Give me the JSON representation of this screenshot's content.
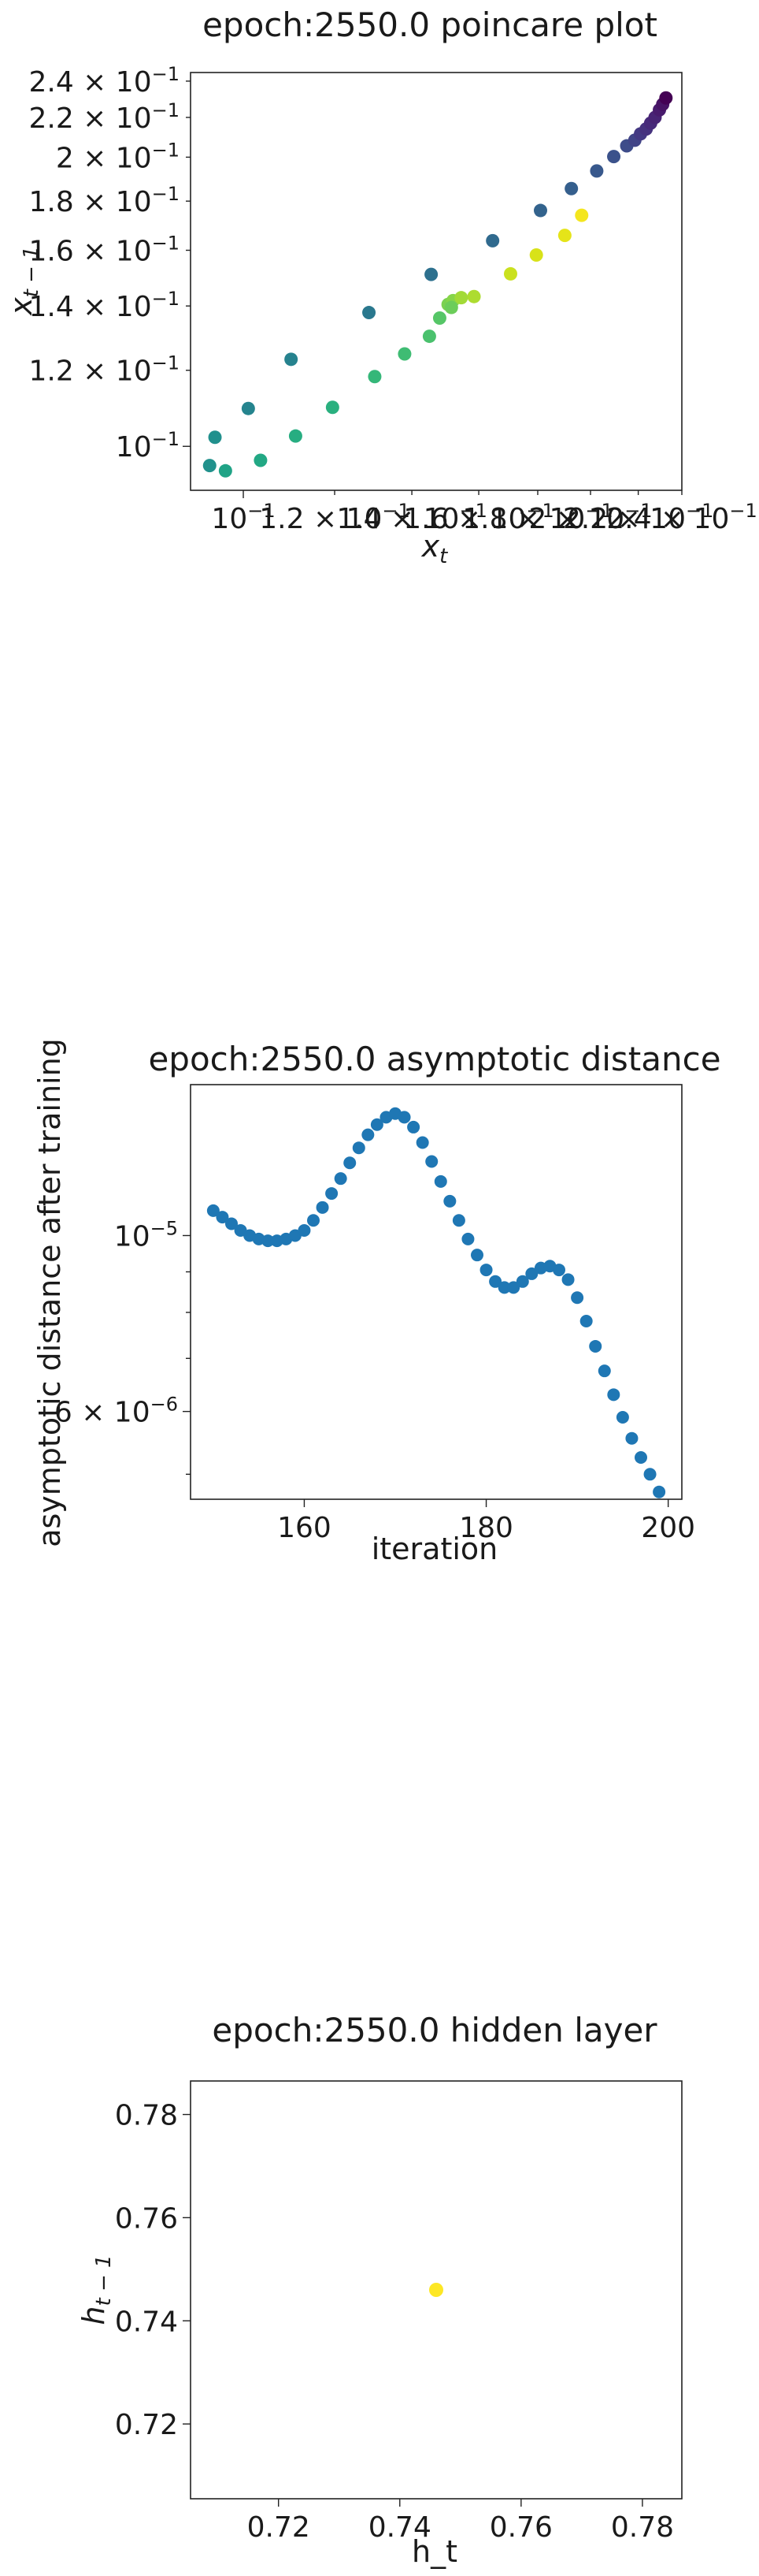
{
  "chart_data": [
    {
      "type": "scatter",
      "title": "epoch:2550.0 poincare plot",
      "xlabel_base": "x",
      "xlabel_sub": "t",
      "ylabel_base": "x",
      "ylabel_sub": "t − 1",
      "xscale": "log",
      "yscale": "log",
      "xlim": [
        0.09,
        0.24
      ],
      "ylim": [
        0.09,
        0.245
      ],
      "grid": false,
      "colormap": "viridis",
      "x_ticks": [
        {
          "value": 0.1,
          "mant": "10",
          "exp": "−1",
          "is_base": true
        },
        {
          "value": 0.12,
          "mant": "1.2 × 10",
          "exp": "−1"
        },
        {
          "value": 0.14,
          "mant": "1.4 × 10",
          "exp": "−1"
        },
        {
          "value": 0.16,
          "mant": "1.6 × 10",
          "exp": "−1"
        },
        {
          "value": 0.18,
          "mant": "1.8 × 10",
          "exp": "−1"
        },
        {
          "value": 0.2,
          "mant": "2 × 10",
          "exp": "−1"
        },
        {
          "value": 0.22,
          "mant": "2.2 × 10",
          "exp": "−1"
        },
        {
          "value": 0.24,
          "mant": "2.4 × 10",
          "exp": "−1"
        }
      ],
      "y_ticks": [
        {
          "value": 0.1,
          "mant": "10",
          "exp": "−1",
          "is_base": true
        },
        {
          "value": 0.12,
          "mant": "1.2 × 10",
          "exp": "−1"
        },
        {
          "value": 0.14,
          "mant": "1.4 × 10",
          "exp": "−1"
        },
        {
          "value": 0.16,
          "mant": "1.6 × 10",
          "exp": "−1"
        },
        {
          "value": 0.18,
          "mant": "1.8 × 10",
          "exp": "−1"
        },
        {
          "value": 0.2,
          "mant": "2 × 10",
          "exp": "−1"
        },
        {
          "value": 0.22,
          "mant": "2.2 × 10",
          "exp": "−1"
        },
        {
          "value": 0.24,
          "mant": "2.4 × 10",
          "exp": "−1"
        }
      ],
      "points": [
        {
          "x": 0.0935,
          "y": 0.0955,
          "c": "#21918c"
        },
        {
          "x": 0.0945,
          "y": 0.1022,
          "c": "#21908d"
        },
        {
          "x": 0.0965,
          "y": 0.0943,
          "c": "#20a386"
        },
        {
          "x": 0.101,
          "y": 0.1095,
          "c": "#25848e"
        },
        {
          "x": 0.1035,
          "y": 0.0967,
          "c": "#22a884"
        },
        {
          "x": 0.111,
          "y": 0.1025,
          "c": "#27ad81"
        },
        {
          "x": 0.11,
          "y": 0.1232,
          "c": "#26828e"
        },
        {
          "x": 0.1195,
          "y": 0.1098,
          "c": "#2ab07f"
        },
        {
          "x": 0.1285,
          "y": 0.1378,
          "c": "#2a788e"
        },
        {
          "x": 0.13,
          "y": 0.1182,
          "c": "#35b779"
        },
        {
          "x": 0.138,
          "y": 0.1248,
          "c": "#3fbc73"
        },
        {
          "x": 0.145,
          "y": 0.1302,
          "c": "#4ac16d"
        },
        {
          "x": 0.1455,
          "y": 0.151,
          "c": "#2d708e"
        },
        {
          "x": 0.148,
          "y": 0.136,
          "c": "#56c667"
        },
        {
          "x": 0.1505,
          "y": 0.1405,
          "c": "#7ad151"
        },
        {
          "x": 0.152,
          "y": 0.1418,
          "c": "#86d549"
        },
        {
          "x": 0.1515,
          "y": 0.1395,
          "c": "#6ccd5a"
        },
        {
          "x": 0.1545,
          "y": 0.1428,
          "c": "#a2da37"
        },
        {
          "x": 0.1585,
          "y": 0.1432,
          "c": "#addc30"
        },
        {
          "x": 0.1645,
          "y": 0.1637,
          "c": "#306a8e"
        },
        {
          "x": 0.1705,
          "y": 0.1512,
          "c": "#cae11f"
        },
        {
          "x": 0.1795,
          "y": 0.1582,
          "c": "#d8e219"
        },
        {
          "x": 0.181,
          "y": 0.176,
          "c": "#33638d"
        },
        {
          "x": 0.19,
          "y": 0.1658,
          "c": "#e5e419"
        },
        {
          "x": 0.1925,
          "y": 0.1855,
          "c": "#355f8d"
        },
        {
          "x": 0.1965,
          "y": 0.174,
          "c": "#f4e61e"
        },
        {
          "x": 0.2025,
          "y": 0.1935,
          "c": "#38588c"
        },
        {
          "x": 0.2095,
          "y": 0.2003,
          "c": "#3b528b"
        },
        {
          "x": 0.215,
          "y": 0.2055,
          "c": "#3e4c8a"
        },
        {
          "x": 0.2185,
          "y": 0.2083,
          "c": "#414487"
        },
        {
          "x": 0.221,
          "y": 0.2115,
          "c": "#443983"
        },
        {
          "x": 0.2235,
          "y": 0.214,
          "c": "#46327e"
        },
        {
          "x": 0.2255,
          "y": 0.217,
          "c": "#472a7a"
        },
        {
          "x": 0.2275,
          "y": 0.22,
          "c": "#482475"
        },
        {
          "x": 0.2295,
          "y": 0.224,
          "c": "#481b6d"
        },
        {
          "x": 0.231,
          "y": 0.227,
          "c": "#471365"
        },
        {
          "x": 0.2325,
          "y": 0.2305,
          "c": "#440154"
        }
      ]
    },
    {
      "type": "scatter",
      "title": "epoch:2550.0 asymptotic distance",
      "xlabel": "iteration",
      "ylabel": "asymptotic distance after training",
      "yscale": "log",
      "xlim": [
        147.5,
        201.5
      ],
      "ylim": [
        4.65e-06,
        1.55e-05
      ],
      "grid": false,
      "color": "#1f77b4",
      "x_ticks": [
        {
          "value": 160,
          "label": "160"
        },
        {
          "value": 180,
          "label": "180"
        },
        {
          "value": 200,
          "label": "200"
        }
      ],
      "y_ticks": [
        {
          "value": 1e-05,
          "mant": "10",
          "exp": "−5",
          "is_base": true
        },
        {
          "value": 6e-06,
          "mant": "6 × 10",
          "exp": "−6"
        }
      ],
      "y_minor_ticks": [
        5e-06,
        7e-06,
        8e-06,
        9e-06
      ],
      "x": [
        150,
        151,
        152,
        153,
        154,
        155,
        156,
        157,
        158,
        159,
        160,
        161,
        162,
        163,
        164,
        165,
        166,
        167,
        168,
        169,
        170,
        171,
        172,
        173,
        174,
        175,
        176,
        177,
        178,
        179,
        180,
        181,
        182,
        183,
        184,
        185,
        186,
        187,
        188,
        189,
        190,
        191,
        192,
        193,
        194,
        195,
        196,
        197,
        198,
        199
      ],
      "y": [
        1.075e-05,
        1.055e-05,
        1.035e-05,
        1.015e-05,
        1e-05,
        9.9e-06,
        9.85e-06,
        9.85e-06,
        9.9e-06,
        1e-05,
        1.015e-05,
        1.045e-05,
        1.085e-05,
        1.13e-05,
        1.18e-05,
        1.235e-05,
        1.29e-05,
        1.34e-05,
        1.38e-05,
        1.41e-05,
        1.425e-05,
        1.41e-05,
        1.37e-05,
        1.31e-05,
        1.24e-05,
        1.17e-05,
        1.105e-05,
        1.045e-05,
        9.9e-06,
        9.45e-06,
        9.05e-06,
        8.75e-06,
        8.6e-06,
        8.6e-06,
        8.75e-06,
        8.95e-06,
        9.1e-06,
        9.15e-06,
        9.05e-06,
        8.8e-06,
        8.35e-06,
        7.8e-06,
        7.25e-06,
        6.75e-06,
        6.3e-06,
        5.9e-06,
        5.55e-06,
        5.25e-06,
        5e-06,
        4.75e-06
      ]
    },
    {
      "type": "scatter",
      "title": "epoch:2550.0 hidden layer",
      "xlabel": "h_t",
      "ylabel_base": "h",
      "ylabel_sub": "t − 1",
      "xlim": [
        0.7055,
        0.7865
      ],
      "ylim": [
        0.7055,
        0.7865
      ],
      "grid": false,
      "x_ticks": [
        "0.72",
        "0.74",
        "0.76",
        "0.78"
      ],
      "y_ticks": [
        "0.72",
        "0.74",
        "0.76",
        "0.78"
      ],
      "points": [
        {
          "x": 0.746,
          "y": 0.746,
          "c": "#fde725"
        }
      ]
    }
  ]
}
